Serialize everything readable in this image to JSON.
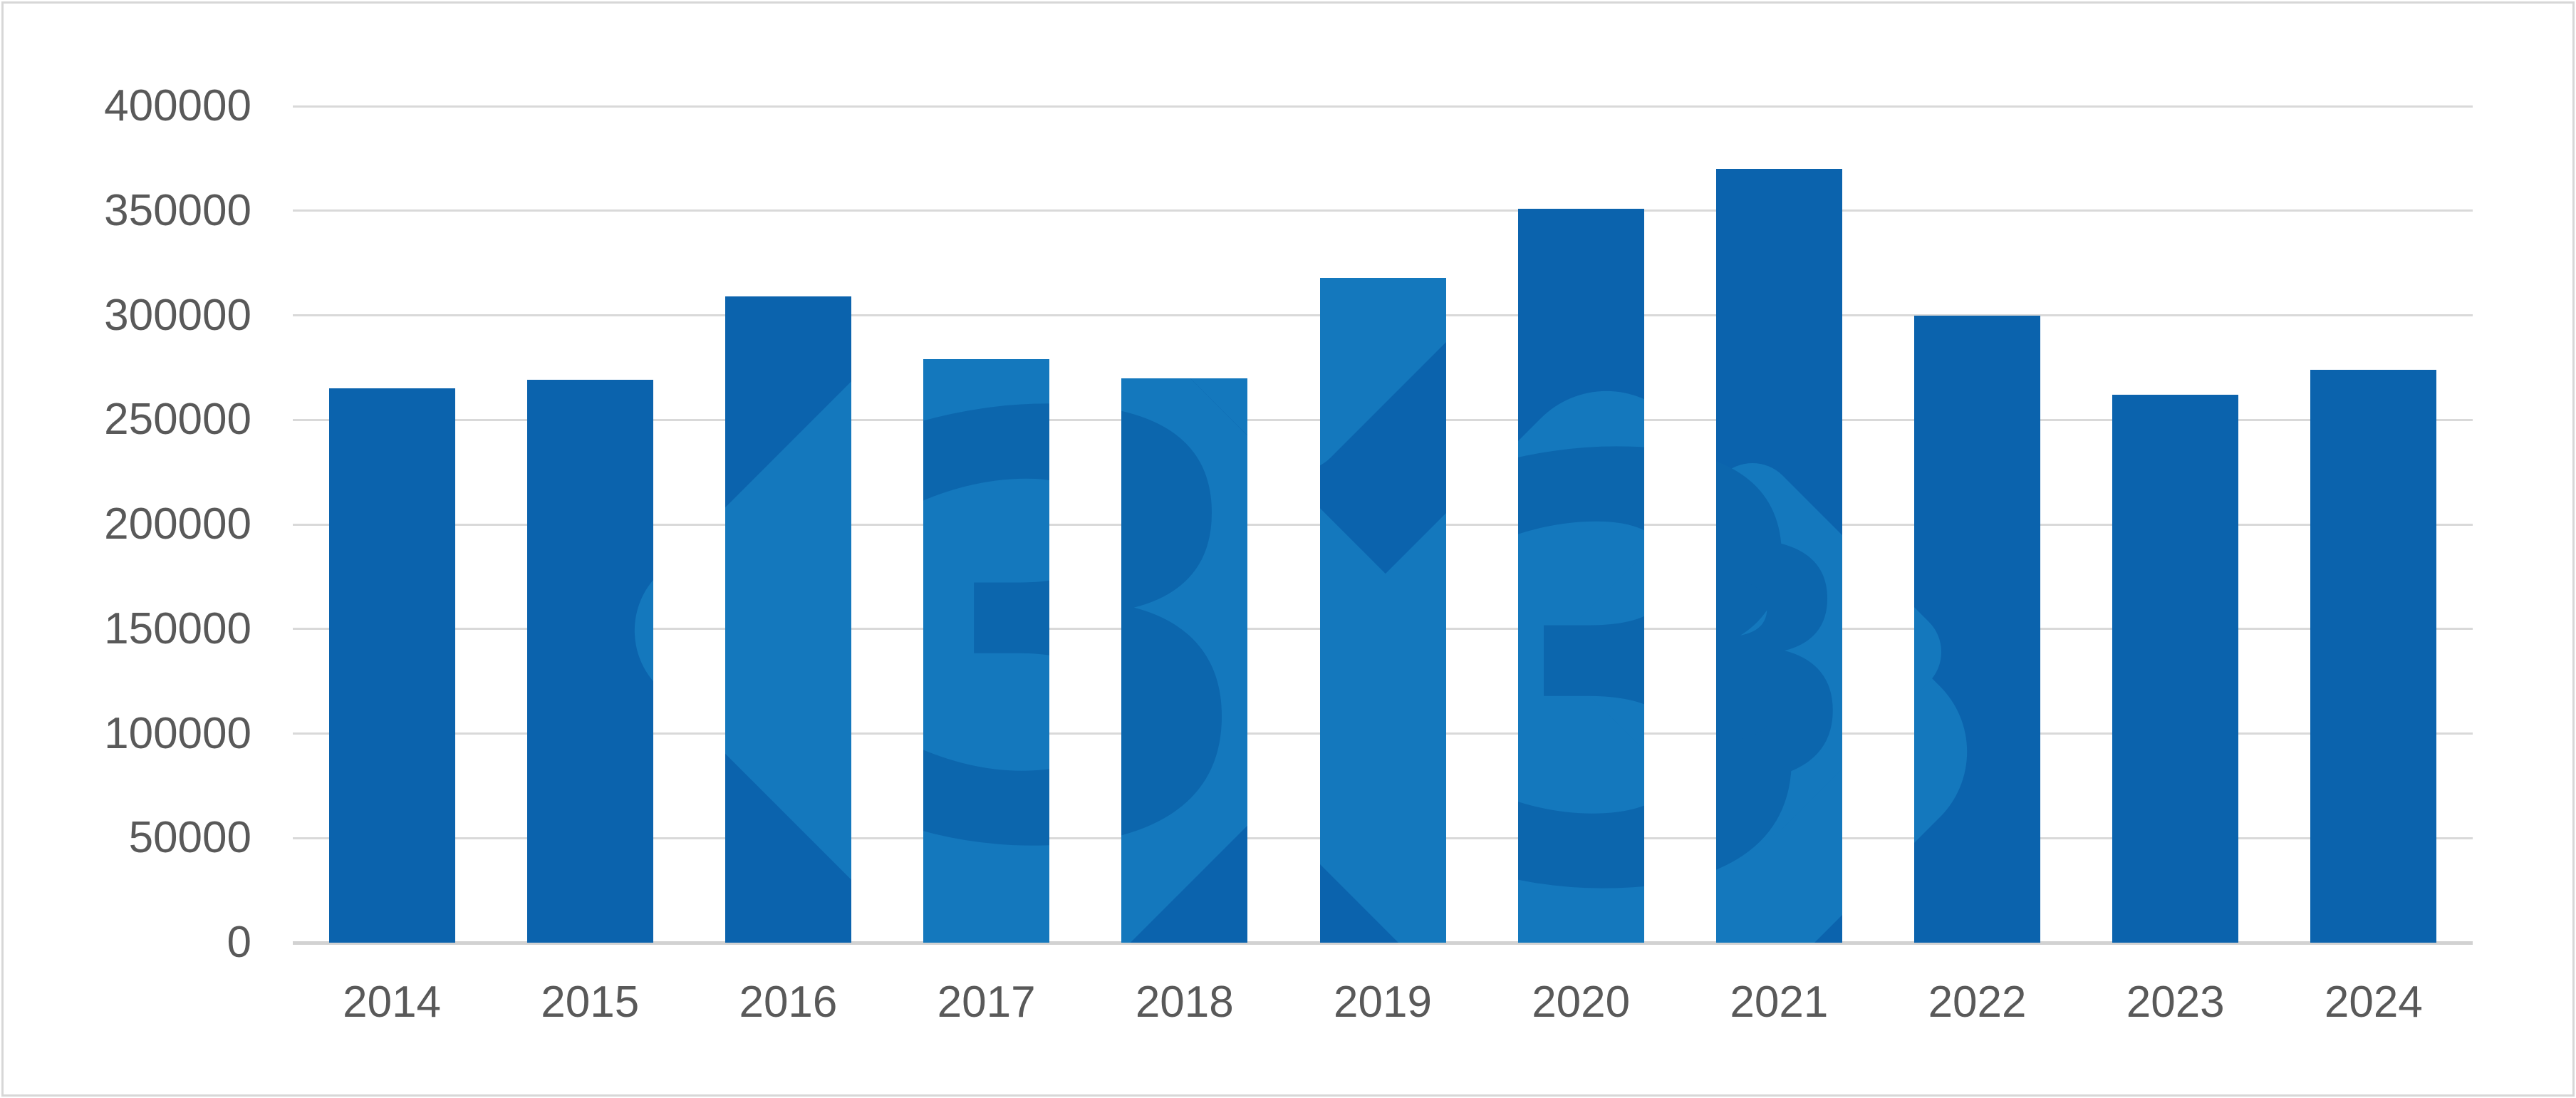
{
  "watermark": {
    "digit": "3",
    "diamond_color": "#1478BD",
    "digit_color": "#0C66AD"
  },
  "colors": {
    "bar": "#0B63AD",
    "gridline": "#D9D9D9",
    "axis_line": "#D2D2D2",
    "label": "#595959",
    "background": "#FFFFFF",
    "frame_border": "#D7D7D7"
  },
  "chart_data": {
    "type": "bar",
    "title": "",
    "xlabel": "",
    "ylabel": "",
    "categories": [
      "2014",
      "2015",
      "2016",
      "2017",
      "2018",
      "2019",
      "2020",
      "2021",
      "2022",
      "2023",
      "2024"
    ],
    "values": [
      265000,
      269000,
      309000,
      279000,
      270000,
      318000,
      351000,
      370000,
      300000,
      262000,
      274000
    ],
    "series_color": "#0B63AD",
    "ylim": [
      0,
      400000
    ],
    "ytick_step": 50000,
    "yticks": [
      0,
      50000,
      100000,
      150000,
      200000,
      250000,
      300000,
      350000,
      400000
    ],
    "grid": "horizontal",
    "legend": "none"
  }
}
